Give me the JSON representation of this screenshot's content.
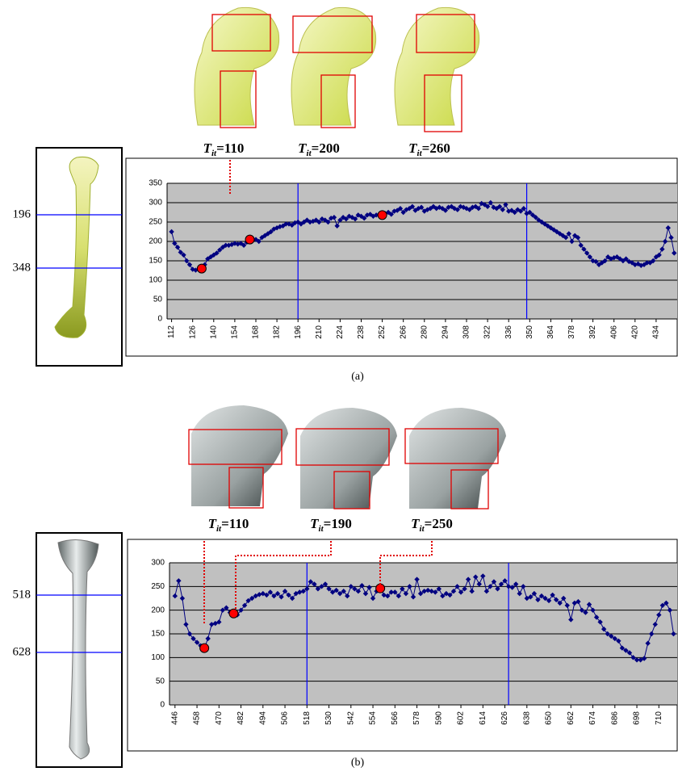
{
  "chart_data": [
    {
      "type": "line",
      "caption": "(a)",
      "grid": true,
      "background": "#c0c0c0",
      "marker_color": "#0000ff",
      "ylim": [
        0,
        350
      ],
      "yticks": [
        0,
        50,
        100,
        150,
        200,
        250,
        300,
        350
      ],
      "xlim": [
        109,
        448
      ],
      "xticks": [
        112,
        126,
        140,
        154,
        168,
        182,
        196,
        210,
        224,
        238,
        252,
        266,
        280,
        294,
        308,
        322,
        336,
        350,
        364,
        378,
        392,
        406,
        420,
        434
      ],
      "markers": [
        196,
        348
      ],
      "annotations": [
        {
          "base": "T",
          "sub": "it",
          "text": "=110"
        },
        {
          "base": "T",
          "sub": "it",
          "text": "=200"
        },
        {
          "base": "T",
          "sub": "it",
          "text": "=260"
        }
      ],
      "series": [
        {
          "color": "#000080",
          "x": [
            112,
            114,
            116,
            118,
            120,
            122,
            124,
            126,
            128,
            130,
            132,
            134,
            136,
            138,
            140,
            142,
            144,
            146,
            148,
            150,
            152,
            154,
            156,
            158,
            160,
            162,
            164,
            166,
            168,
            170,
            172,
            174,
            176,
            178,
            180,
            182,
            184,
            186,
            188,
            190,
            192,
            194,
            196,
            198,
            200,
            202,
            204,
            206,
            208,
            210,
            212,
            214,
            216,
            218,
            220,
            222,
            224,
            226,
            228,
            230,
            232,
            234,
            236,
            238,
            240,
            242,
            244,
            246,
            248,
            250,
            252,
            254,
            256,
            258,
            260,
            262,
            264,
            266,
            268,
            270,
            272,
            274,
            276,
            278,
            280,
            282,
            284,
            286,
            288,
            290,
            292,
            294,
            296,
            298,
            300,
            302,
            304,
            306,
            308,
            310,
            312,
            314,
            316,
            318,
            320,
            322,
            324,
            326,
            328,
            330,
            332,
            334,
            336,
            338,
            340,
            342,
            344,
            346,
            348,
            350,
            352,
            354,
            356,
            358,
            360,
            362,
            364,
            366,
            368,
            370,
            372,
            374,
            376,
            378,
            380,
            382,
            384,
            386,
            388,
            390,
            392,
            394,
            396,
            398,
            400,
            402,
            404,
            406,
            408,
            410,
            412,
            414,
            416,
            418,
            420,
            422,
            424,
            426,
            428,
            430,
            432,
            434,
            436,
            438,
            440,
            442,
            444,
            446
          ],
          "values": [
            225,
            195,
            185,
            172,
            165,
            150,
            140,
            128,
            126,
            128,
            130,
            140,
            155,
            160,
            165,
            170,
            178,
            185,
            190,
            190,
            192,
            195,
            193,
            195,
            190,
            198,
            200,
            205,
            205,
            200,
            210,
            215,
            220,
            225,
            232,
            235,
            238,
            240,
            245,
            245,
            242,
            248,
            250,
            245,
            250,
            255,
            250,
            252,
            255,
            250,
            258,
            255,
            250,
            260,
            262,
            240,
            255,
            262,
            258,
            265,
            262,
            258,
            268,
            265,
            260,
            268,
            270,
            265,
            268,
            270,
            268,
            272,
            275,
            270,
            278,
            280,
            285,
            275,
            282,
            285,
            290,
            280,
            285,
            288,
            278,
            282,
            285,
            290,
            285,
            288,
            285,
            280,
            288,
            290,
            285,
            282,
            290,
            288,
            285,
            282,
            288,
            290,
            285,
            298,
            295,
            290,
            300,
            288,
            285,
            290,
            282,
            295,
            278,
            280,
            275,
            282,
            278,
            285,
            272,
            275,
            268,
            262,
            255,
            250,
            245,
            240,
            235,
            230,
            225,
            220,
            215,
            210,
            220,
            200,
            215,
            210,
            190,
            180,
            170,
            160,
            150,
            148,
            140,
            145,
            150,
            160,
            155,
            158,
            160,
            155,
            150,
            155,
            148,
            145,
            140,
            142,
            138,
            140,
            145,
            145,
            150,
            160,
            165,
            180,
            200,
            235,
            210,
            170
          ]
        },
        {
          "color": "#ff0000",
          "x": [
            132,
            164,
            252
          ],
          "values": [
            130,
            205,
            268
          ]
        }
      ]
    },
    {
      "type": "line",
      "caption": "(b)",
      "grid": true,
      "background": "#c0c0c0",
      "marker_color": "#0000ff",
      "ylim": [
        0,
        300
      ],
      "yticks": [
        0,
        50,
        100,
        150,
        200,
        250,
        300
      ],
      "xlim": [
        443,
        720
      ],
      "xticks": [
        446,
        458,
        470,
        482,
        494,
        506,
        518,
        530,
        542,
        554,
        566,
        578,
        590,
        602,
        614,
        626,
        638,
        650,
        662,
        674,
        686,
        698,
        710
      ],
      "markers": [
        518,
        628
      ],
      "annotations": [
        {
          "base": "T",
          "sub": "it",
          "text": "=110"
        },
        {
          "base": "T",
          "sub": "it",
          "text": "=190"
        },
        {
          "base": "T",
          "sub": "it",
          "text": "=250"
        }
      ],
      "series": [
        {
          "color": "#000080",
          "x": [
            446,
            448,
            450,
            452,
            454,
            456,
            458,
            460,
            462,
            464,
            466,
            468,
            470,
            472,
            474,
            476,
            478,
            480,
            482,
            484,
            486,
            488,
            490,
            492,
            494,
            496,
            498,
            500,
            502,
            504,
            506,
            508,
            510,
            512,
            514,
            516,
            518,
            520,
            522,
            524,
            526,
            528,
            530,
            532,
            534,
            536,
            538,
            540,
            542,
            544,
            546,
            548,
            550,
            552,
            554,
            556,
            558,
            560,
            562,
            564,
            566,
            568,
            570,
            572,
            574,
            576,
            578,
            580,
            582,
            584,
            586,
            588,
            590,
            592,
            594,
            596,
            598,
            600,
            602,
            604,
            606,
            608,
            610,
            612,
            614,
            616,
            618,
            620,
            622,
            624,
            626,
            628,
            630,
            632,
            634,
            636,
            638,
            640,
            642,
            644,
            646,
            648,
            650,
            652,
            654,
            656,
            658,
            660,
            662,
            664,
            666,
            668,
            670,
            672,
            674,
            676,
            678,
            680,
            682,
            684,
            686,
            688,
            690,
            692,
            694,
            696,
            698,
            700,
            702,
            704,
            706,
            708,
            710,
            712,
            714,
            716,
            718
          ],
          "values": [
            230,
            262,
            225,
            170,
            150,
            140,
            132,
            125,
            120,
            140,
            170,
            172,
            175,
            200,
            205,
            195,
            193,
            190,
            200,
            210,
            220,
            225,
            230,
            233,
            235,
            232,
            238,
            230,
            235,
            228,
            240,
            232,
            225,
            235,
            238,
            240,
            245,
            260,
            255,
            245,
            250,
            255,
            245,
            238,
            242,
            235,
            240,
            230,
            250,
            245,
            240,
            252,
            235,
            248,
            225,
            240,
            246,
            232,
            230,
            238,
            238,
            230,
            245,
            235,
            250,
            228,
            265,
            235,
            240,
            242,
            240,
            238,
            245,
            230,
            235,
            232,
            240,
            250,
            238,
            245,
            265,
            240,
            270,
            255,
            272,
            240,
            250,
            260,
            245,
            255,
            262,
            250,
            248,
            255,
            235,
            250,
            225,
            228,
            235,
            222,
            230,
            225,
            220,
            232,
            222,
            215,
            225,
            210,
            180,
            215,
            218,
            200,
            195,
            212,
            200,
            185,
            175,
            160,
            150,
            145,
            140,
            135,
            120,
            115,
            110,
            100,
            95,
            95,
            98,
            130,
            150,
            170,
            190,
            210,
            215,
            200,
            150
          ]
        },
        {
          "color": "#ff0000",
          "x": [
            462,
            478,
            558
          ],
          "values": [
            120,
            193,
            246
          ]
        }
      ]
    }
  ]
}
